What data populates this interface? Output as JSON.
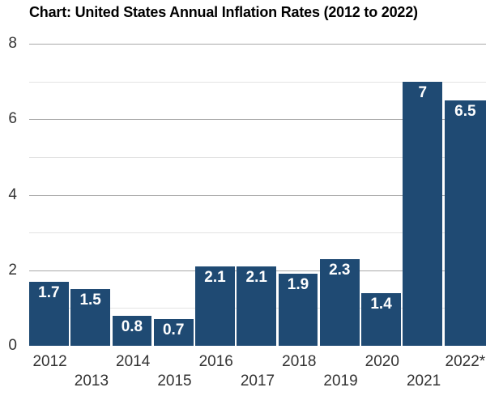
{
  "title": "Chart: United States Annual Inflation Rates (2012 to 2022)",
  "chart_data": {
    "type": "bar",
    "title": "Chart: United States Annual Inflation Rates (2012 to 2022)",
    "categories": [
      "2012",
      "2013",
      "2014",
      "2015",
      "2016",
      "2017",
      "2018",
      "2019",
      "2020",
      "2021",
      "2022*"
    ],
    "values": [
      1.7,
      1.5,
      0.8,
      0.7,
      2.1,
      2.1,
      1.9,
      2.3,
      1.4,
      7,
      6.5
    ],
    "bar_labels": [
      "1.7",
      "1.5",
      "0.8",
      "0.7",
      "2.1",
      "2.1",
      "1.9",
      "2.3",
      "1.4",
      "7",
      "6.5"
    ],
    "xlabel": "",
    "ylabel": "",
    "ylim": [
      0,
      8
    ],
    "y_ticks": [
      0,
      2,
      4,
      6,
      8
    ],
    "minor_gridline_values": [
      1,
      3,
      5,
      7
    ],
    "major_gridline_values": [
      2,
      4,
      6,
      8
    ],
    "grid": true,
    "legend_position": "none",
    "x_label_layout": "staggered-two-rows",
    "value_label_position": "inside-top",
    "colors": {
      "bar": "#1f4a73",
      "bar_label": "#ffffff",
      "major_gridline": "#a9a9a9",
      "minor_gridline": "#e3e3e3",
      "axis_text": "#333333",
      "title_text": "#000000",
      "background": "#ffffff"
    }
  }
}
